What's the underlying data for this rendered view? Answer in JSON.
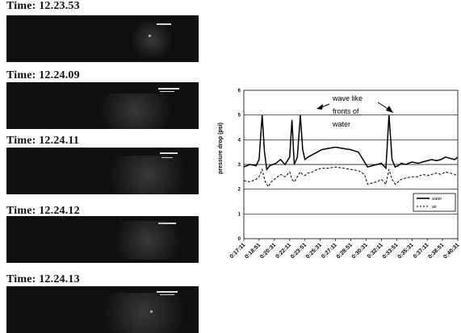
{
  "frames": [
    {
      "time_label": "Time: 12.23.53"
    },
    {
      "time_label": "Time: 12.24.09"
    },
    {
      "time_label": "Time: 12.24.11"
    },
    {
      "time_label": "Time: 12.24.12"
    },
    {
      "time_label": "Time: 12.24.13"
    }
  ],
  "chart_data": {
    "type": "line",
    "ylabel": "pressure drop (psi)",
    "xlabel": "",
    "ylim": [
      0,
      6
    ],
    "yticks": [
      "0",
      "1",
      "2",
      "3",
      "4",
      "5",
      "6"
    ],
    "grid": true,
    "categories": [
      "0:17:11",
      "0:18:51",
      "0:20:31",
      "0:22:11",
      "0:23:51",
      "0:25:31",
      "0:27:11",
      "0:28:51",
      "0:30:31",
      "0:32:11",
      "0:33:51",
      "0:35:31",
      "0:37:11",
      "0:38:51",
      "0:40:31"
    ],
    "annotation": {
      "lines": [
        "wave like",
        "fronts of",
        "water"
      ]
    },
    "legend": {
      "position": "right",
      "entries": [
        "water",
        "air"
      ]
    },
    "series": [
      {
        "name": "water",
        "style": "solid",
        "color": "#000000",
        "x": [
          0.0,
          0.4,
          0.8,
          1.0,
          1.2,
          1.35,
          1.5,
          1.7,
          2.1,
          2.4,
          2.7,
          3.0,
          3.15,
          3.3,
          3.5,
          3.7,
          3.85,
          4.0,
          4.2,
          4.5,
          4.8,
          5.1,
          5.5,
          6.0,
          6.5,
          7.0,
          7.5,
          7.9,
          8.1,
          8.4,
          8.7,
          9.0,
          9.3,
          9.5,
          9.7,
          9.9,
          10.1,
          10.3,
          10.6,
          11.0,
          11.4,
          11.7,
          12.0,
          12.3,
          12.6,
          12.9,
          13.2,
          13.5,
          13.8,
          14.0
        ],
        "y": [
          2.9,
          3.0,
          2.95,
          3.2,
          5.0,
          3.5,
          2.8,
          2.95,
          3.05,
          3.2,
          3.0,
          3.3,
          4.8,
          3.0,
          3.3,
          5.0,
          3.6,
          3.2,
          3.3,
          3.4,
          3.5,
          3.6,
          3.65,
          3.7,
          3.65,
          3.6,
          3.5,
          3.1,
          2.9,
          2.95,
          3.0,
          3.05,
          2.85,
          5.0,
          3.2,
          2.9,
          2.95,
          3.05,
          3.0,
          3.1,
          3.05,
          3.1,
          3.15,
          3.2,
          3.15,
          3.2,
          3.3,
          3.25,
          3.2,
          3.3
        ]
      },
      {
        "name": "air",
        "style": "dashed",
        "color": "#000000",
        "x": [
          0.0,
          0.4,
          0.8,
          1.0,
          1.2,
          1.4,
          1.6,
          1.8,
          2.1,
          2.4,
          2.7,
          3.0,
          3.15,
          3.3,
          3.5,
          3.7,
          3.85,
          4.0,
          4.2,
          4.5,
          4.8,
          5.1,
          5.5,
          6.0,
          6.5,
          7.0,
          7.5,
          7.9,
          8.1,
          8.4,
          8.7,
          9.0,
          9.3,
          9.5,
          9.7,
          9.9,
          10.1,
          10.3,
          10.6,
          11.0,
          11.4,
          11.7,
          12.0,
          12.3,
          12.6,
          12.9,
          13.2,
          13.5,
          13.8,
          14.0
        ],
        "y": [
          2.35,
          2.3,
          2.4,
          2.5,
          2.8,
          2.3,
          2.1,
          2.3,
          2.45,
          2.6,
          2.5,
          2.7,
          2.4,
          2.3,
          2.5,
          2.7,
          2.6,
          2.55,
          2.65,
          2.7,
          2.8,
          2.85,
          2.85,
          2.9,
          2.85,
          2.8,
          2.75,
          2.6,
          2.2,
          2.25,
          2.3,
          2.4,
          2.2,
          2.8,
          2.4,
          2.2,
          2.3,
          2.4,
          2.45,
          2.5,
          2.5,
          2.6,
          2.55,
          2.6,
          2.65,
          2.6,
          2.7,
          2.65,
          2.6,
          2.55
        ]
      }
    ]
  }
}
